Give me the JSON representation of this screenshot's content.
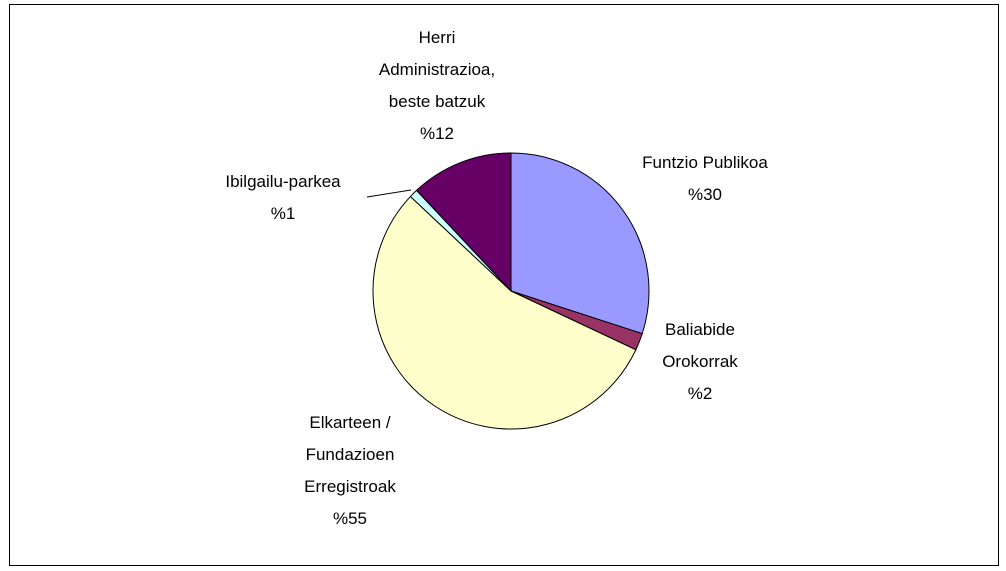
{
  "chart_data": {
    "type": "pie",
    "categories": [
      "Funtzio Publikoa",
      "Baliabide Orokorrak",
      "Elkarteen / Fundazioen Erregistroak",
      "Ibilgailu-parkea",
      "Herri Administrazioa, beste batzuk"
    ],
    "values": [
      30,
      2,
      55,
      1,
      12
    ],
    "value_labels": [
      "%30",
      "%2",
      "%55",
      "%1",
      "%12"
    ],
    "colors": [
      "#9999ff",
      "#993366",
      "#ffffcc",
      "#ccffff",
      "#660066"
    ]
  }
}
